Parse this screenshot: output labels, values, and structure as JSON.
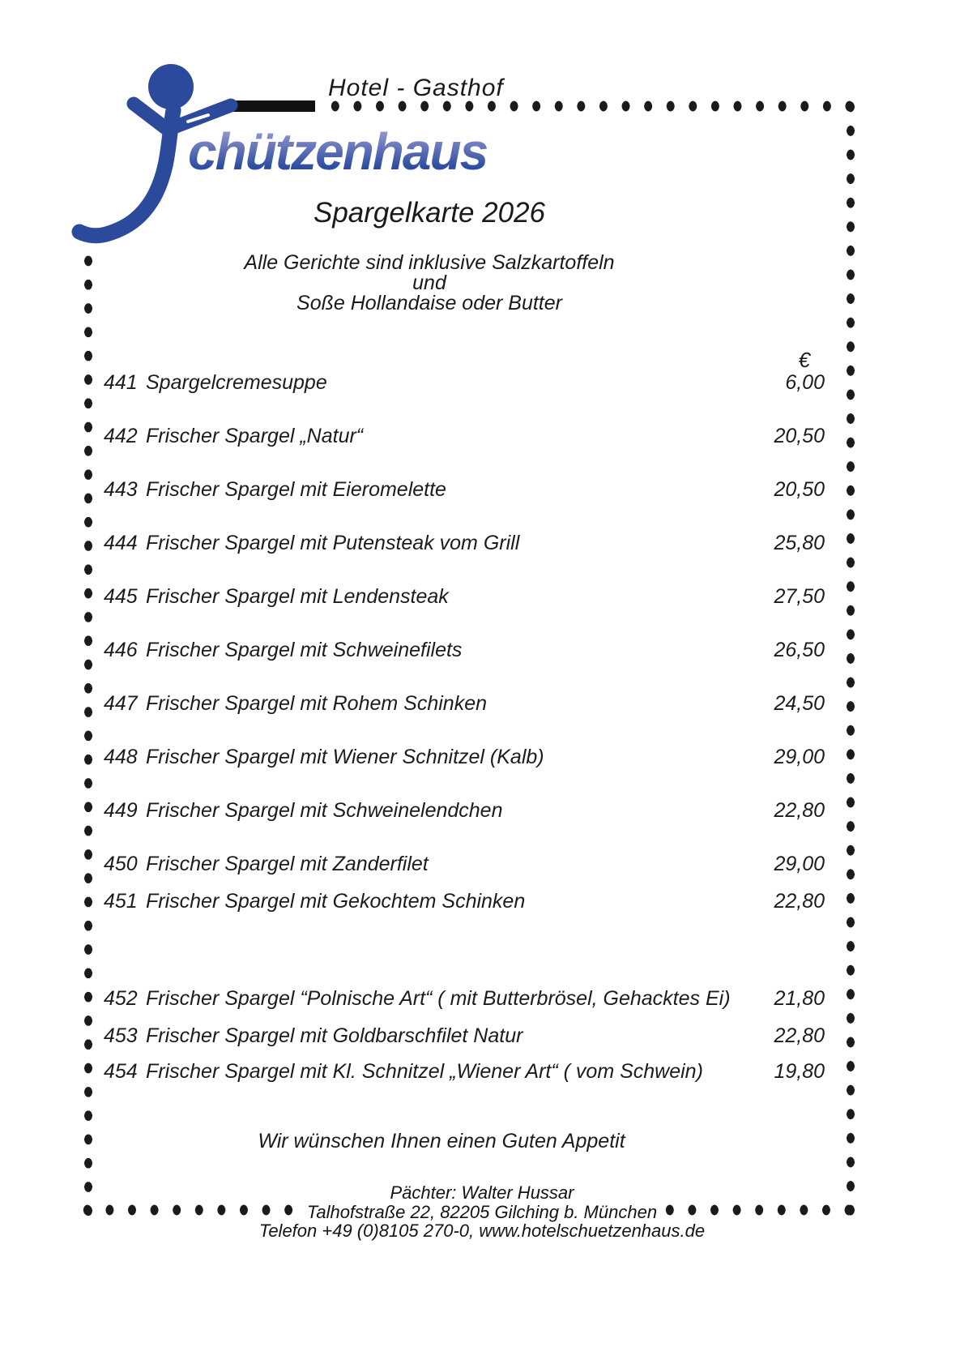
{
  "header": {
    "hotel_label": "Hotel - Gasthof",
    "brand": "chützenhaus",
    "subtitle": "Spargelkarte 2026"
  },
  "intro": {
    "line1": "Alle Gerichte sind inklusive Salzkartoffeln",
    "line2": "und",
    "line3": "Soße Hollandaise oder Butter"
  },
  "menu": {
    "currency_symbol": "€",
    "items": [
      {
        "number": "441",
        "name": "Spargelcremesuppe",
        "price": "6,00"
      },
      {
        "number": "442",
        "name": "Frischer Spargel „Natur“",
        "price": "20,50"
      },
      {
        "number": "443",
        "name": "Frischer Spargel mit Eieromelette",
        "price": "20,50"
      },
      {
        "number": "444",
        "name": "Frischer Spargel mit Putensteak vom Grill",
        "price": "25,80"
      },
      {
        "number": "445",
        "name": "Frischer Spargel mit Lendensteak",
        "price": "27,50"
      },
      {
        "number": "446",
        "name": "Frischer Spargel mit Schweinefilets",
        "price": "26,50"
      },
      {
        "number": "447",
        "name": "Frischer Spargel mit Rohem Schinken",
        "price": "24,50"
      },
      {
        "number": "448",
        "name": "Frischer Spargel mit Wiener Schnitzel (Kalb)",
        "price": "29,00"
      },
      {
        "number": "449",
        "name": "Frischer Spargel mit Schweinelendchen",
        "price": "22,80"
      },
      {
        "number": "450",
        "name": "Frischer Spargel mit Zanderfilet",
        "price": "29,00"
      },
      {
        "number": "451",
        "name": "Frischer Spargel mit Gekochtem Schinken",
        "price": "22,80"
      },
      {
        "number": "452",
        "name": "Frischer Spargel “Polnische Art“ ( mit Butterbrösel, Gehacktes Ei)",
        "price": "21,80"
      },
      {
        "number": "453",
        "name": "Frischer Spargel mit Goldbarschfilet Natur",
        "price": "22,80"
      },
      {
        "number": "454",
        "name": "Frischer Spargel mit Kl. Schnitzel „Wiener Art“ ( vom Schwein)",
        "price": "19,80"
      }
    ]
  },
  "footer": {
    "wish": "Wir wünschen Ihnen einen Guten Appetit",
    "line1": "Pächter: Walter Hussar",
    "line2": "Talhofstraße 22, 82205 Gilching b. München",
    "line3": "Telefon +49 (0)8105 270-0, www.hotelschuetzenhaus.de"
  },
  "colors": {
    "brand_blue": "#2c4a9c",
    "brand_blue_light": "#a8aed6",
    "dot": "#1b1b1b",
    "text": "#1c1c1c"
  },
  "icons": {
    "logo": "shooter-figure-icon"
  }
}
